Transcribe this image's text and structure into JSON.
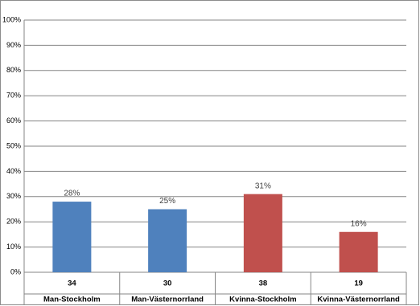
{
  "chart_data": {
    "type": "bar",
    "categories": [
      "Man-Stockholm",
      "Man-Västernorrland",
      "Kvinna-Stockholm",
      "Kvinna-Västernorrland"
    ],
    "counts": [
      34,
      30,
      38,
      19
    ],
    "values": [
      28,
      25,
      31,
      16
    ],
    "value_labels": [
      "28%",
      "25%",
      "31%",
      "16%"
    ],
    "colors": [
      "#4f81bd",
      "#4f81bd",
      "#c0504d",
      "#c0504d"
    ],
    "ylim": [
      0,
      100
    ],
    "yticks": [
      {
        "value": 0,
        "label": "0%"
      },
      {
        "value": 10,
        "label": "10%"
      },
      {
        "value": 20,
        "label": "20%"
      },
      {
        "value": 30,
        "label": "30%"
      },
      {
        "value": 40,
        "label": "40%"
      },
      {
        "value": 50,
        "label": "50%"
      },
      {
        "value": 60,
        "label": "60%"
      },
      {
        "value": 70,
        "label": "70%"
      },
      {
        "value": 80,
        "label": "80%"
      },
      {
        "value": 90,
        "label": "90%"
      },
      {
        "value": 100,
        "label": "100%"
      }
    ],
    "grid": true
  }
}
